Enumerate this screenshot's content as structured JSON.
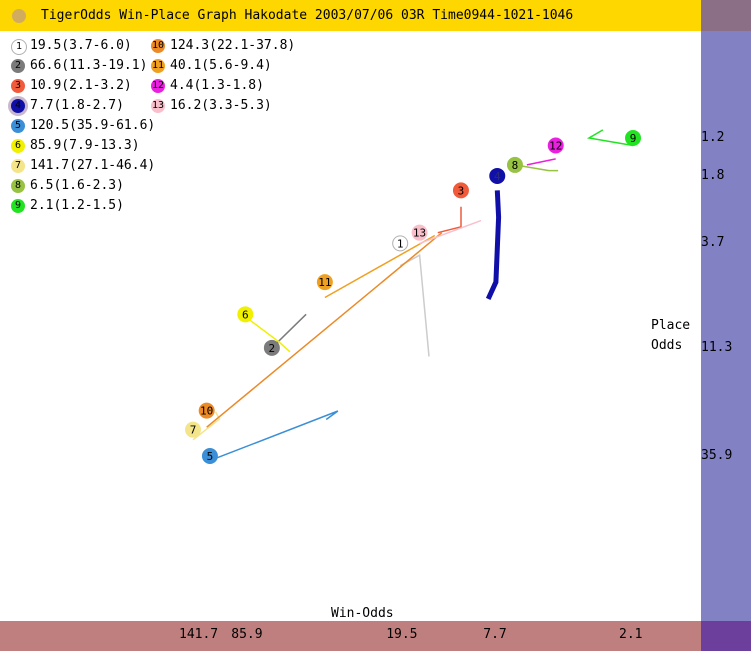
{
  "title": "TigerOdds Win-Place Graph Hakodate 2003/07/06 03R Time0944-1021-1046",
  "colors": {
    "title_bg": "#ffd700",
    "right_bar": "#8181c4",
    "bottom_bar": "#c07f7f"
  },
  "chart_data": {
    "type": "line",
    "title": "TigerOdds Win-Place Graph Hakodate 2003/07/06 03R Time0944-1021-1046",
    "xlabel": "Win-Odds",
    "ylabel": "Place Odds",
    "x_scale": "log",
    "y_scale": "log",
    "x_ticks": [
      "141.7",
      "85.9",
      "19.5",
      "7.7",
      "2.1"
    ],
    "y_ticks": [
      "1.2",
      "1.8",
      "3.7",
      "11.3",
      "35.9"
    ],
    "grid": false,
    "legend_position": "top-left",
    "series": [
      {
        "name": "1",
        "label": "19.5(3.7-6.0)",
        "win": 19.5,
        "place_low": 3.7,
        "place_high": 6.0,
        "color": "#ffffff",
        "highlight": false,
        "trail": [
          [
            14.8,
            12.4
          ],
          [
            16.2,
            4.2
          ],
          [
            19.5,
            4.7
          ]
        ]
      },
      {
        "name": "2",
        "label": "66.6(11.3-19.1)",
        "win": 66.6,
        "place_low": 11.3,
        "place_high": 19.1,
        "color": "#7b7b7b",
        "highlight": false,
        "trail": [
          [
            48.0,
            7.9
          ],
          [
            66.6,
            11.3
          ]
        ]
      },
      {
        "name": "3",
        "label": "10.9(2.1-3.2)",
        "win": 10.9,
        "place_low": 2.1,
        "place_high": 3.2,
        "color": "#ef5b3b",
        "highlight": false,
        "trail": [
          [
            13.6,
            3.3
          ],
          [
            10.9,
            3.1
          ],
          [
            10.9,
            2.5
          ]
        ]
      },
      {
        "name": "4",
        "label": "7.7(1.8-2.7)",
        "win": 7.7,
        "place_low": 1.8,
        "place_high": 2.7,
        "color": "#1010a8",
        "highlight": true,
        "trail": [
          [
            8.4,
            6.7
          ],
          [
            7.8,
            5.6
          ],
          [
            7.6,
            2.8
          ],
          [
            7.7,
            2.1
          ]
        ]
      },
      {
        "name": "5",
        "label": "120.5(35.9-61.6)",
        "win": 120.5,
        "place_low": 35.9,
        "place_high": 61.6,
        "color": "#3b8fd6",
        "highlight": false,
        "trail": [
          [
            39.6,
            24.3
          ],
          [
            35.4,
            22.2
          ],
          [
            120.5,
            37.7
          ]
        ]
      },
      {
        "name": "6",
        "label": "85.9(7.9-13.3)",
        "win": 85.9,
        "place_low": 7.9,
        "place_high": 13.3,
        "color": "#f0f000",
        "highlight": false,
        "trail": [
          [
            56.0,
            11.8
          ],
          [
            62.2,
            10.6
          ],
          [
            85.9,
            8.1
          ]
        ]
      },
      {
        "name": "7",
        "label": "141.7(27.1-46.4)",
        "win": 141.7,
        "place_low": 27.1,
        "place_high": 46.4,
        "color": "#f4e48a",
        "highlight": false,
        "trail": [
          [
            114.1,
            22.4
          ],
          [
            110.0,
            24.2
          ],
          [
            141.7,
            30.2
          ]
        ]
      },
      {
        "name": "8",
        "label": "6.5(1.6-2.3)",
        "win": 6.5,
        "place_low": 1.6,
        "place_high": 2.3,
        "color": "#98c242",
        "highlight": false,
        "trail": [
          [
            4.3,
            1.7
          ],
          [
            4.7,
            1.7
          ],
          [
            6.5,
            1.6
          ]
        ]
      },
      {
        "name": "9",
        "label": "2.1(1.2-1.5)",
        "win": 2.1,
        "place_low": 1.2,
        "place_high": 1.5,
        "color": "#22e322",
        "highlight": false,
        "trail": [
          [
            2.8,
            1.1
          ],
          [
            3.2,
            1.2
          ],
          [
            2.1,
            1.3
          ]
        ]
      },
      {
        "name": "10",
        "label": "124.3(22.1-37.8)",
        "win": 124.3,
        "place_low": 22.1,
        "place_high": 37.8,
        "color": "#eb8a26",
        "highlight": false,
        "trail": [
          [
            13.1,
            3.3
          ],
          [
            124.3,
            26.4
          ]
        ]
      },
      {
        "name": "11",
        "label": "40.1(5.6-9.4)",
        "win": 40.1,
        "place_low": 5.6,
        "place_high": 9.4,
        "color": "#f0a020",
        "highlight": false,
        "trail": [
          [
            14.0,
            3.4
          ],
          [
            40.1,
            6.6
          ]
        ]
      },
      {
        "name": "12",
        "label": "4.4(1.3-1.8)",
        "win": 4.4,
        "place_low": 1.3,
        "place_high": 1.8,
        "color": "#ea20e0",
        "highlight": false,
        "trail": [
          [
            5.8,
            1.6
          ],
          [
            4.4,
            1.5
          ]
        ]
      },
      {
        "name": "13",
        "label": "16.2(3.3-5.3)",
        "win": 16.2,
        "place_low": 3.3,
        "place_high": 5.3,
        "color": "#f9c0cc",
        "highlight": false,
        "trail": [
          [
            9.0,
            2.9
          ],
          [
            16.2,
            3.7
          ]
        ]
      }
    ]
  },
  "legend": {
    "columns": 2,
    "first_column_count": 9
  }
}
